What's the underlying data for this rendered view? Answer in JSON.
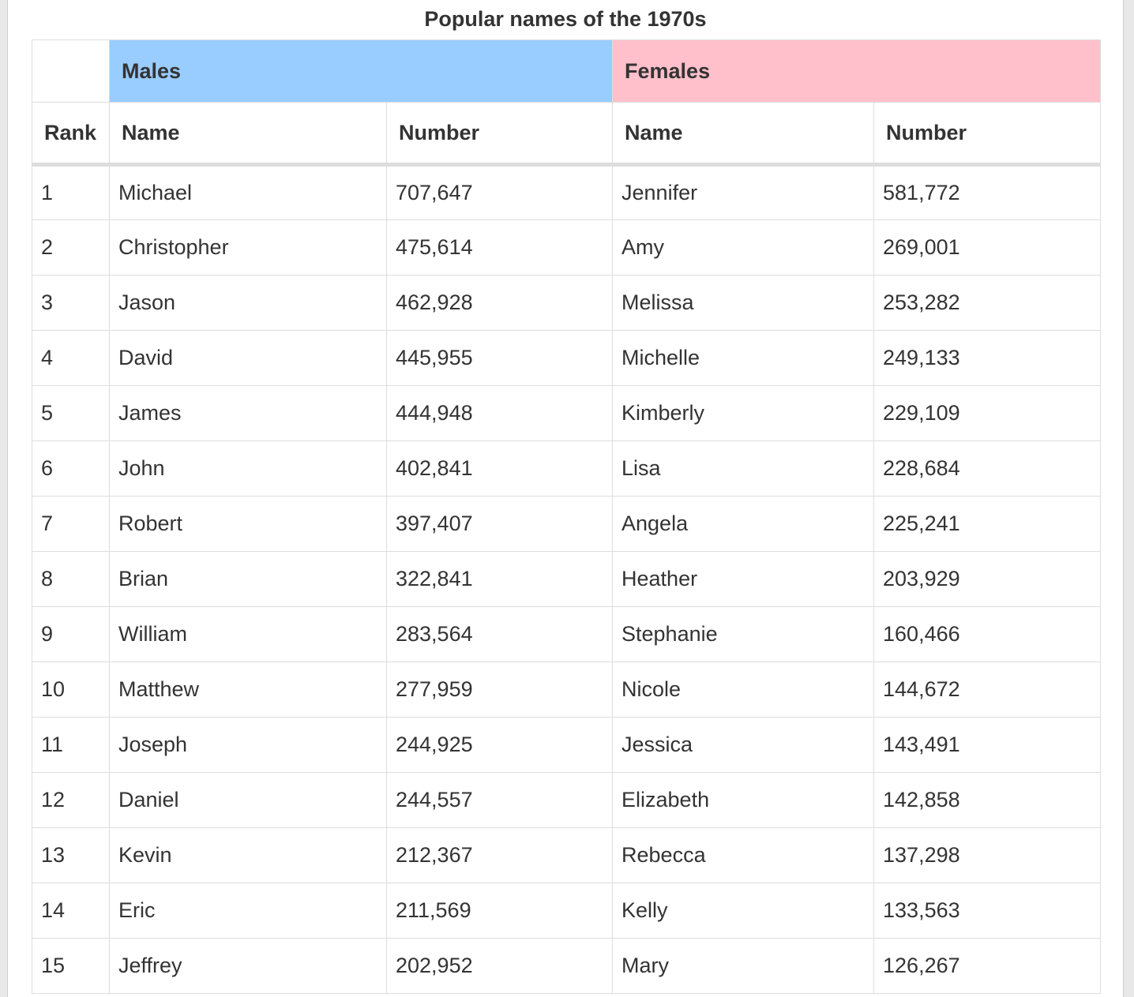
{
  "title": "Popular names of the 1970s",
  "groups": {
    "males": "Males",
    "females": "Females"
  },
  "columns": {
    "rank": "Rank",
    "male_name": "Name",
    "male_number": "Number",
    "female_name": "Name",
    "female_number": "Number"
  },
  "rows": [
    {
      "rank": "1",
      "male_name": "Michael",
      "male_number": "707,647",
      "female_name": "Jennifer",
      "female_number": "581,772"
    },
    {
      "rank": "2",
      "male_name": "Christopher",
      "male_number": "475,614",
      "female_name": "Amy",
      "female_number": "269,001"
    },
    {
      "rank": "3",
      "male_name": "Jason",
      "male_number": "462,928",
      "female_name": "Melissa",
      "female_number": "253,282"
    },
    {
      "rank": "4",
      "male_name": "David",
      "male_number": "445,955",
      "female_name": "Michelle",
      "female_number": "249,133"
    },
    {
      "rank": "5",
      "male_name": "James",
      "male_number": "444,948",
      "female_name": "Kimberly",
      "female_number": "229,109"
    },
    {
      "rank": "6",
      "male_name": "John",
      "male_number": "402,841",
      "female_name": "Lisa",
      "female_number": "228,684"
    },
    {
      "rank": "7",
      "male_name": "Robert",
      "male_number": "397,407",
      "female_name": "Angela",
      "female_number": "225,241"
    },
    {
      "rank": "8",
      "male_name": "Brian",
      "male_number": "322,841",
      "female_name": "Heather",
      "female_number": "203,929"
    },
    {
      "rank": "9",
      "male_name": "William",
      "male_number": "283,564",
      "female_name": "Stephanie",
      "female_number": "160,466"
    },
    {
      "rank": "10",
      "male_name": "Matthew",
      "male_number": "277,959",
      "female_name": "Nicole",
      "female_number": "144,672"
    },
    {
      "rank": "11",
      "male_name": "Joseph",
      "male_number": "244,925",
      "female_name": "Jessica",
      "female_number": "143,491"
    },
    {
      "rank": "12",
      "male_name": "Daniel",
      "male_number": "244,557",
      "female_name": "Elizabeth",
      "female_number": "142,858"
    },
    {
      "rank": "13",
      "male_name": "Kevin",
      "male_number": "212,367",
      "female_name": "Rebecca",
      "female_number": "137,298"
    },
    {
      "rank": "14",
      "male_name": "Eric",
      "male_number": "211,569",
      "female_name": "Kelly",
      "female_number": "133,563"
    },
    {
      "rank": "15",
      "male_name": "Jeffrey",
      "male_number": "202,952",
      "female_name": "Mary",
      "female_number": "126,267"
    }
  ],
  "colors": {
    "males_header": "#99ccff",
    "females_header": "#ffc0cb",
    "border": "#dddddd",
    "text": "#333333"
  }
}
